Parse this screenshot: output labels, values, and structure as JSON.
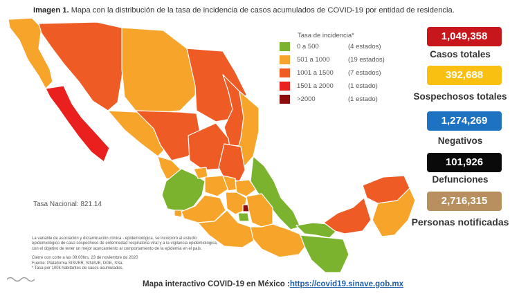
{
  "title": {
    "bold": "Imagen 1.",
    "text": " Mapa con la distribución de la tasa de incidencia de casos acumulados de COVID-19 por entidad de residencia."
  },
  "legend": {
    "title": "Tasa de incidencia*",
    "items": [
      {
        "range": "0 a  500",
        "count": "(4 estados)",
        "color": "#7bb32e"
      },
      {
        "range": "501 a  1000",
        "count": "(19 estados)",
        "color": "#f7a52a"
      },
      {
        "range": "1001 a  1500",
        "count": "(7 estados)",
        "color": "#ef5b25"
      },
      {
        "range": "1501 a  2000",
        "count": "(1 estado)",
        "color": "#e9201d"
      },
      {
        "range": ">2000",
        "count": "(1 estado)",
        "color": "#8c0d0d"
      }
    ]
  },
  "stats": [
    {
      "value": "1,049,358",
      "label": "Casos totales",
      "color": "#c8161d"
    },
    {
      "value": "392,688",
      "label": "Sospechosos totales",
      "color": "#f9c012"
    },
    {
      "value": "1,274,269",
      "label": "Negativos",
      "color": "#1d72c1"
    },
    {
      "value": "101,926",
      "label": "Defunciones",
      "color": "#0a0a0a"
    },
    {
      "value": "2,716,315",
      "label": "Personas notificadas",
      "color": "#b8905f"
    }
  ],
  "tasa_nacional": "Tasa Nacional: 821.14",
  "notes": {
    "line1": "La variable de asociación y dictaminación clínica - epidemiológica, se incorporó al estudio",
    "line2": "epidemiológico de caso sospechoso de enfermedad respiratoria viral y a la vigilancia epidemiológica,",
    "line3": "con el objetivo de tener un mejor acercamiento al comportamiento de la epidemia en el país.",
    "line4": "Cierre con corte a las 09:00hrs, 23 de noviembre de 2020",
    "line5": "Fuente: Plataforma SISVER, SINAVE, DGE, SSa.",
    "line6": "* Tasa por 100k habitantes de casos acumulados."
  },
  "footer": {
    "text": "Mapa interactivo COVID-19 en México :",
    "link": "https://covid19.sinave.gob.mx"
  }
}
